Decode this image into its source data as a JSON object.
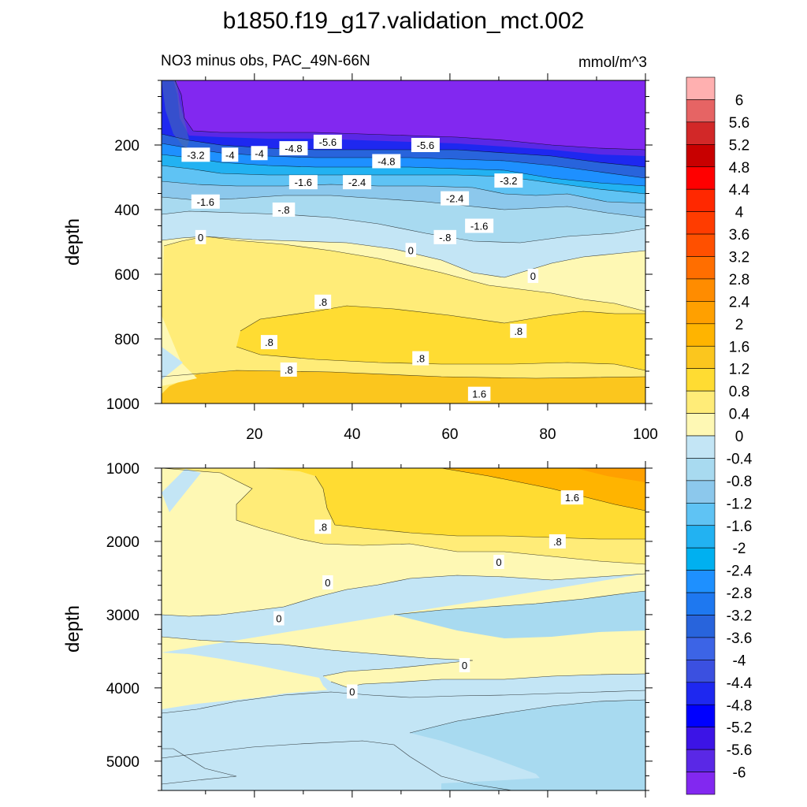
{
  "figure": {
    "title": "b1850.f19_g17.validation_mct.002",
    "left_subtitle": "NO3 minus obs, PAC_49N-66N",
    "right_subtitle": "mmol/m^3"
  },
  "chart_data": [
    {
      "type": "heatmap",
      "panel": "upper",
      "title": "NO3 minus obs, PAC_49N-66N",
      "units": "mmol/m^3",
      "xlabel": "",
      "ylabel": "depth",
      "xlim": [
        1,
        100
      ],
      "ylim": [
        1000,
        0
      ],
      "xticks": [
        20,
        40,
        60,
        80,
        100
      ],
      "yticks": [
        200,
        400,
        600,
        800,
        1000
      ],
      "contour_labels": [
        {
          "text": "-3.2",
          "x": 8,
          "y": 230
        },
        {
          "text": "-4",
          "x": 15,
          "y": 230
        },
        {
          "text": "-4",
          "x": 21,
          "y": 225
        },
        {
          "text": "-4.8",
          "x": 28,
          "y": 210
        },
        {
          "text": "-5.6",
          "x": 35,
          "y": 190
        },
        {
          "text": "-4.8",
          "x": 47,
          "y": 250
        },
        {
          "text": "-5.6",
          "x": 55,
          "y": 200
        },
        {
          "text": "-3.2",
          "x": 72,
          "y": 310
        },
        {
          "text": "-1.6",
          "x": 30,
          "y": 315
        },
        {
          "text": "-2.4",
          "x": 41,
          "y": 315
        },
        {
          "text": "-1.6",
          "x": 10,
          "y": 375
        },
        {
          "text": "-2.4",
          "x": 61,
          "y": 365
        },
        {
          "text": "-.8",
          "x": 26,
          "y": 400
        },
        {
          "text": "-1.6",
          "x": 66,
          "y": 450
        },
        {
          "text": "-.8",
          "x": 59,
          "y": 485
        },
        {
          "text": "0",
          "x": 9,
          "y": 485
        },
        {
          "text": "0",
          "x": 52,
          "y": 525
        },
        {
          "text": "0",
          "x": 77,
          "y": 605
        },
        {
          "text": ".8",
          "x": 34,
          "y": 685
        },
        {
          "text": ".8",
          "x": 74,
          "y": 775
        },
        {
          "text": ".8",
          "x": 23,
          "y": 810
        },
        {
          "text": ".8",
          "x": 54,
          "y": 860
        },
        {
          "text": ".8",
          "x": 27,
          "y": 895
        },
        {
          "text": "1.6",
          "x": 66,
          "y": 970
        }
      ]
    },
    {
      "type": "heatmap",
      "panel": "lower",
      "xlabel": "",
      "ylabel": "depth",
      "xlim": [
        1,
        100
      ],
      "ylim": [
        5400,
        1000
      ],
      "yticks": [
        1000,
        2000,
        3000,
        4000,
        5000
      ],
      "contour_labels": [
        {
          "text": "1.6",
          "x": 85,
          "y": 1400
        },
        {
          "text": ".8",
          "x": 34,
          "y": 1800
        },
        {
          "text": ".8",
          "x": 82,
          "y": 2000
        },
        {
          "text": "0",
          "x": 70,
          "y": 2280
        },
        {
          "text": "0",
          "x": 35,
          "y": 2560
        },
        {
          "text": "0",
          "x": 25,
          "y": 3050
        },
        {
          "text": "0",
          "x": 63,
          "y": 3690
        },
        {
          "text": "0",
          "x": 40,
          "y": 4050
        }
      ]
    }
  ],
  "colorbar": {
    "levels": [
      "6",
      "5.6",
      "5.2",
      "4.8",
      "4.4",
      "4",
      "3.6",
      "3.2",
      "2.8",
      "2.4",
      "2",
      "1.6",
      "1.2",
      "0.8",
      "0.4",
      "0",
      "-0.4",
      "-0.8",
      "-1.2",
      "-1.6",
      "-2",
      "-2.4",
      "-2.8",
      "-3.2",
      "-3.6",
      "-4",
      "-4.4",
      "-4.8",
      "-5.2",
      "-5.6",
      "-6"
    ],
    "colors": [
      "#FFB0B0",
      "#E66464",
      "#D22828",
      "#C80000",
      "#FF0000",
      "#FF2800",
      "#FF3C00",
      "#FF5000",
      "#FF6E00",
      "#FF8C00",
      "#FFA000",
      "#FFB400",
      "#FBC61E",
      "#FFDC32",
      "#FFEC78",
      "#FEF8B4",
      "#C3E5F5",
      "#A8DAF0",
      "#8CC8EC",
      "#5FC3F4",
      "#22B2F2",
      "#00B0F0",
      "#1E90FF",
      "#1E78F0",
      "#2864DC",
      "#3C64E6",
      "#3B50E0",
      "#1E28F0",
      "#0000FF",
      "#3C14E6",
      "#5A28E6",
      "#8228F0"
    ]
  }
}
